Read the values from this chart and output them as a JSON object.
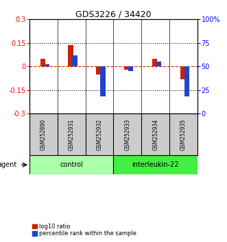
{
  "title": "GDS3226 / 34420",
  "samples": [
    "GSM252890",
    "GSM252931",
    "GSM252932",
    "GSM252933",
    "GSM252934",
    "GSM252935"
  ],
  "log10_ratio": [
    0.05,
    0.135,
    -0.05,
    -0.02,
    0.05,
    -0.08
  ],
  "percentile_rank": [
    52,
    62,
    18,
    45,
    55,
    18
  ],
  "ylim_left": [
    -0.3,
    0.3
  ],
  "ylim_right": [
    0,
    100
  ],
  "yticks_left": [
    -0.3,
    -0.15,
    0.0,
    0.15,
    0.3
  ],
  "yticks_right": [
    0,
    25,
    50,
    75,
    100
  ],
  "ytick_labels_left": [
    "-0.3",
    "-0.15",
    "0",
    "0.15",
    "0.3"
  ],
  "ytick_labels_right": [
    "0",
    "25",
    "50",
    "75",
    "100%"
  ],
  "dotted_lines": [
    -0.15,
    0.15
  ],
  "groups": [
    {
      "label": "control",
      "indices": [
        0,
        1,
        2
      ],
      "color": "#aaffaa"
    },
    {
      "label": "interleukin-22",
      "indices": [
        3,
        4,
        5
      ],
      "color": "#44ee44"
    }
  ],
  "group_label_prefix": "agent",
  "bar_width": 0.18,
  "bar_gap": 0.06,
  "red_color": "#cc2200",
  "blue_color": "#2244cc",
  "bg_color": "#ffffff",
  "plot_bg": "#ffffff",
  "tick_area_bg": "#cccccc",
  "legend_red_label": "log10 ratio",
  "legend_blue_label": "percentile rank within the sample"
}
